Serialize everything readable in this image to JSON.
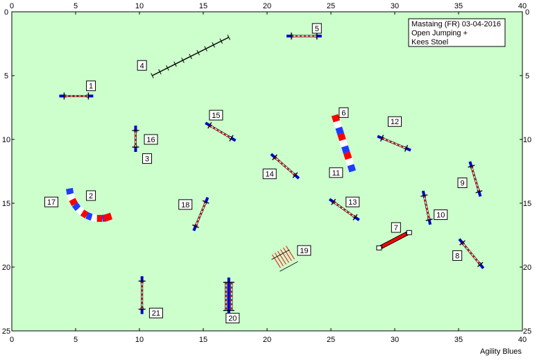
{
  "colors": {
    "field": "#ccffcc",
    "pole_red": "#ff0000",
    "pole_white": "#ffffff",
    "wing_blue": "#0000cc",
    "tunnel_red": "#ff0000",
    "tunnel_blue": "#1e3cff"
  },
  "axes": {
    "x_ticks": [
      "0",
      "5",
      "10",
      "15",
      "20",
      "25",
      "30",
      "35",
      "40"
    ],
    "y_ticks": [
      "0",
      "5",
      "10",
      "15",
      "20",
      "25"
    ]
  },
  "info_box": {
    "line1": "Mastaing (FR) 03-04-2016",
    "line2": "Open Jumping +",
    "line3": "Kees Stoel"
  },
  "footer": "Agility Blues",
  "obstacles": [
    {
      "n": "1",
      "type": "jump",
      "x1": 4.1,
      "y1": 6.6,
      "x2": 6.0,
      "y2": 6.6,
      "lx": 6.2,
      "ly": 5.8
    },
    {
      "n": "2",
      "type": "tunnel",
      "lx": 6.2,
      "ly": 14.4
    },
    {
      "n": "3",
      "type": "label",
      "lx": 10.6,
      "ly": 11.5
    },
    {
      "n": "4",
      "type": "dogwalk",
      "x1": 11.0,
      "y1": 5.0,
      "x2": 17.0,
      "y2": 2.0,
      "lx": 10.2,
      "ly": 4.2
    },
    {
      "n": "5",
      "type": "jump",
      "x1": 21.9,
      "y1": 1.9,
      "x2": 23.9,
      "y2": 1.9,
      "lx": 23.9,
      "ly": 1.3
    },
    {
      "n": "6",
      "type": "tunnel_straight",
      "x1": 25.3,
      "y1": 8.1,
      "x2": 26.7,
      "y2": 12.5,
      "lx": 26.0,
      "ly": 7.9
    },
    {
      "n": "7",
      "type": "tire",
      "x1": 28.8,
      "y1": 18.5,
      "x2": 31.1,
      "y2": 17.3,
      "lx": 30.1,
      "ly": 16.9
    },
    {
      "n": "8",
      "type": "jump",
      "x1": 35.3,
      "y1": 18.1,
      "x2": 36.7,
      "y2": 19.8,
      "lx": 34.9,
      "ly": 19.1
    },
    {
      "n": "9",
      "type": "jump",
      "x1": 36.0,
      "y1": 12.1,
      "x2": 36.6,
      "y2": 14.1,
      "lx": 35.3,
      "ly": 13.4
    },
    {
      "n": "10",
      "type": "jump",
      "x1": 32.3,
      "y1": 14.4,
      "x2": 32.7,
      "y2": 16.3,
      "lx": 33.6,
      "ly": 15.9
    },
    {
      "n": "11",
      "type": "label",
      "lx": 25.4,
      "ly": 12.6
    },
    {
      "n": "12",
      "type": "jump",
      "x1": 29.0,
      "y1": 9.9,
      "x2": 30.9,
      "y2": 10.7,
      "lx": 30.0,
      "ly": 8.6
    },
    {
      "n": "13",
      "type": "jump",
      "x1": 25.2,
      "y1": 14.9,
      "x2": 26.9,
      "y2": 16.1,
      "lx": 26.7,
      "ly": 14.9
    },
    {
      "n": "14",
      "type": "jump",
      "x1": 20.6,
      "y1": 11.4,
      "x2": 22.2,
      "y2": 12.8,
      "lx": 20.2,
      "ly": 12.7
    },
    {
      "n": "15",
      "type": "jump",
      "x1": 15.5,
      "y1": 8.9,
      "x2": 17.2,
      "y2": 9.9,
      "lx": 16.0,
      "ly": 8.1
    },
    {
      "n": "16",
      "type": "jump",
      "x1": 9.7,
      "y1": 9.3,
      "x2": 9.7,
      "y2": 10.6,
      "lx": 10.9,
      "ly": 10.0
    },
    {
      "n": "17",
      "type": "label",
      "lx": 3.1,
      "ly": 14.9
    },
    {
      "n": "18",
      "type": "jump",
      "x1": 14.4,
      "y1": 16.8,
      "x2": 15.2,
      "y2": 14.9,
      "lx": 13.6,
      "ly": 15.1
    },
    {
      "n": "19",
      "type": "weave",
      "lx": 22.9,
      "ly": 18.7
    },
    {
      "n": "20",
      "type": "double",
      "x1": 17.0,
      "y1": 21.2,
      "x2": 17.0,
      "y2": 23.4,
      "lx": 17.3,
      "ly": 24.0
    },
    {
      "n": "21",
      "type": "jump",
      "x1": 10.2,
      "y1": 21.1,
      "x2": 10.2,
      "y2": 23.3,
      "lx": 11.3,
      "ly": 23.6
    }
  ]
}
